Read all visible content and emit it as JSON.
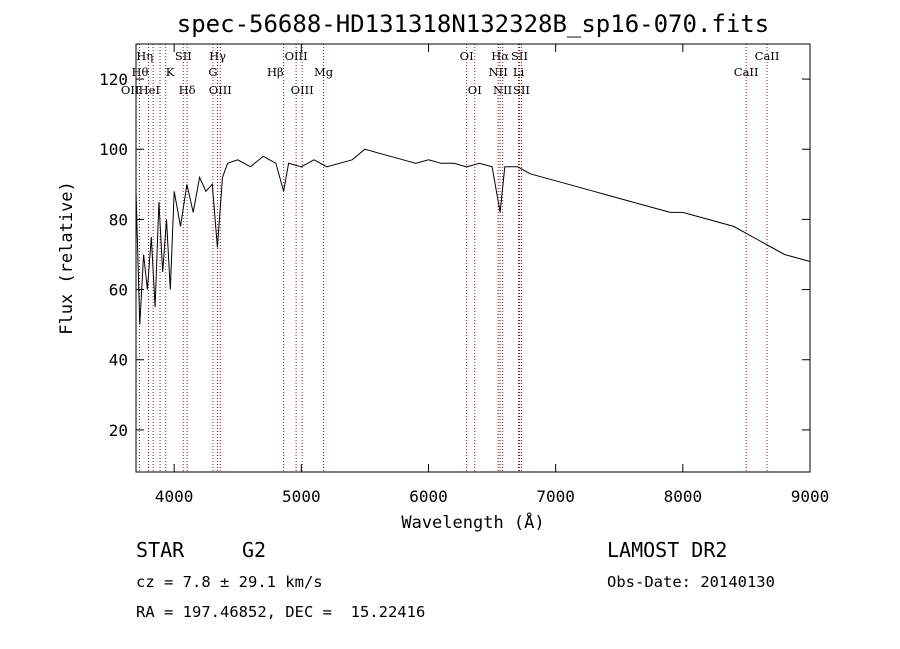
{
  "chart_data": {
    "type": "line",
    "title": "spec-56688-HD131318N132328B_sp16-070.fits",
    "xlabel": "Wavelength (Å)",
    "ylabel": "Flux (relative)",
    "xlim": [
      3700,
      9000
    ],
    "ylim": [
      8,
      130
    ],
    "xticks": [
      4000,
      5000,
      6000,
      7000,
      8000,
      9000
    ],
    "yticks": [
      20,
      40,
      60,
      80,
      100,
      120
    ],
    "grid": false,
    "line_color": "#000000",
    "marker_color": "#8b1a1a",
    "series": [
      {
        "x": [
          3700,
          3730,
          3760,
          3790,
          3820,
          3850,
          3880,
          3910,
          3940,
          3970,
          4000,
          4050,
          4100,
          4150,
          4200,
          4250,
          4300,
          4340,
          4380,
          4420,
          4500,
          4600,
          4700,
          4800,
          4861,
          4900,
          5000,
          5100,
          5200,
          5300,
          5400,
          5500,
          5600,
          5700,
          5800,
          5900,
          6000,
          6100,
          6200,
          6300,
          6400,
          6500,
          6563,
          6600,
          6700,
          6800,
          6900,
          7000,
          7100,
          7200,
          7300,
          7400,
          7500,
          7600,
          7700,
          7800,
          7900,
          8000,
          8100,
          8200,
          8300,
          8400,
          8500,
          8600,
          8700,
          8800,
          8900,
          9000
        ],
        "y": [
          88,
          50,
          70,
          60,
          75,
          55,
          85,
          65,
          80,
          60,
          88,
          78,
          90,
          82,
          92,
          88,
          90,
          72,
          92,
          96,
          97,
          95,
          98,
          96,
          88,
          96,
          95,
          97,
          95,
          96,
          97,
          100,
          99,
          98,
          97,
          96,
          97,
          96,
          96,
          95,
          96,
          95,
          82,
          95,
          95,
          93,
          92,
          91,
          90,
          89,
          88,
          87,
          86,
          85,
          84,
          83,
          82,
          82,
          81,
          80,
          79,
          78,
          76,
          74,
          72,
          70,
          69,
          68
        ]
      }
    ],
    "line_markers": [
      {
        "label": "Hη",
        "wl": 3835,
        "row": 0,
        "align": "end"
      },
      {
        "label": "Hθ",
        "wl": 3798,
        "row": 1,
        "align": "end"
      },
      {
        "label": "OII",
        "wl": 3727,
        "row": 2,
        "align": "end"
      },
      {
        "label": "HeI",
        "wl": 3889,
        "row": 2,
        "align": "end"
      },
      {
        "label": "K",
        "wl": 3934,
        "row": 1,
        "align": "start"
      },
      {
        "label": "SII",
        "wl": 4072,
        "row": 0,
        "align": "middle"
      },
      {
        "label": "Hδ",
        "wl": 4102,
        "row": 2,
        "align": "middle"
      },
      {
        "label": "Hγ",
        "wl": 4341,
        "row": 0,
        "align": "middle"
      },
      {
        "label": "G",
        "wl": 4305,
        "row": 1,
        "align": "middle"
      },
      {
        "label": "OIII",
        "wl": 4363,
        "row": 2,
        "align": "middle"
      },
      {
        "label": "OIII",
        "wl": 4959,
        "row": 0,
        "align": "middle"
      },
      {
        "label": "Hβ",
        "wl": 4861,
        "row": 1,
        "align": "end"
      },
      {
        "label": "OIII",
        "wl": 5007,
        "row": 2,
        "align": "middle"
      },
      {
        "label": "Mg",
        "wl": 5175,
        "row": 1,
        "align": "middle"
      },
      {
        "label": "OI",
        "wl": 6300,
        "row": 0,
        "align": "middle"
      },
      {
        "label": "OI",
        "wl": 6364,
        "row": 2,
        "align": "middle"
      },
      {
        "label": "Hα",
        "wl": 6563,
        "row": 0,
        "align": "middle"
      },
      {
        "label": "SII",
        "wl": 6716,
        "row": 0,
        "align": "middle"
      },
      {
        "label": "NII",
        "wl": 6548,
        "row": 1,
        "align": "middle"
      },
      {
        "label": "Li",
        "wl": 6708,
        "row": 1,
        "align": "middle"
      },
      {
        "label": "NII",
        "wl": 6583,
        "row": 2,
        "align": "middle"
      },
      {
        "label": "SII",
        "wl": 6731,
        "row": 2,
        "align": "middle"
      },
      {
        "label": "CaII",
        "wl": 8662,
        "row": 0,
        "align": "middle"
      },
      {
        "label": "CaII",
        "wl": 8498,
        "row": 1,
        "align": "middle"
      }
    ]
  },
  "info": {
    "class_label": "STAR",
    "subclass": "G2",
    "survey": "LAMOST DR2",
    "cz": "cz = 7.8 ± 29.1 km/s",
    "obs_date": "Obs-Date: 20140130",
    "radec": "RA = 197.46852, DEC =  15.22416"
  }
}
